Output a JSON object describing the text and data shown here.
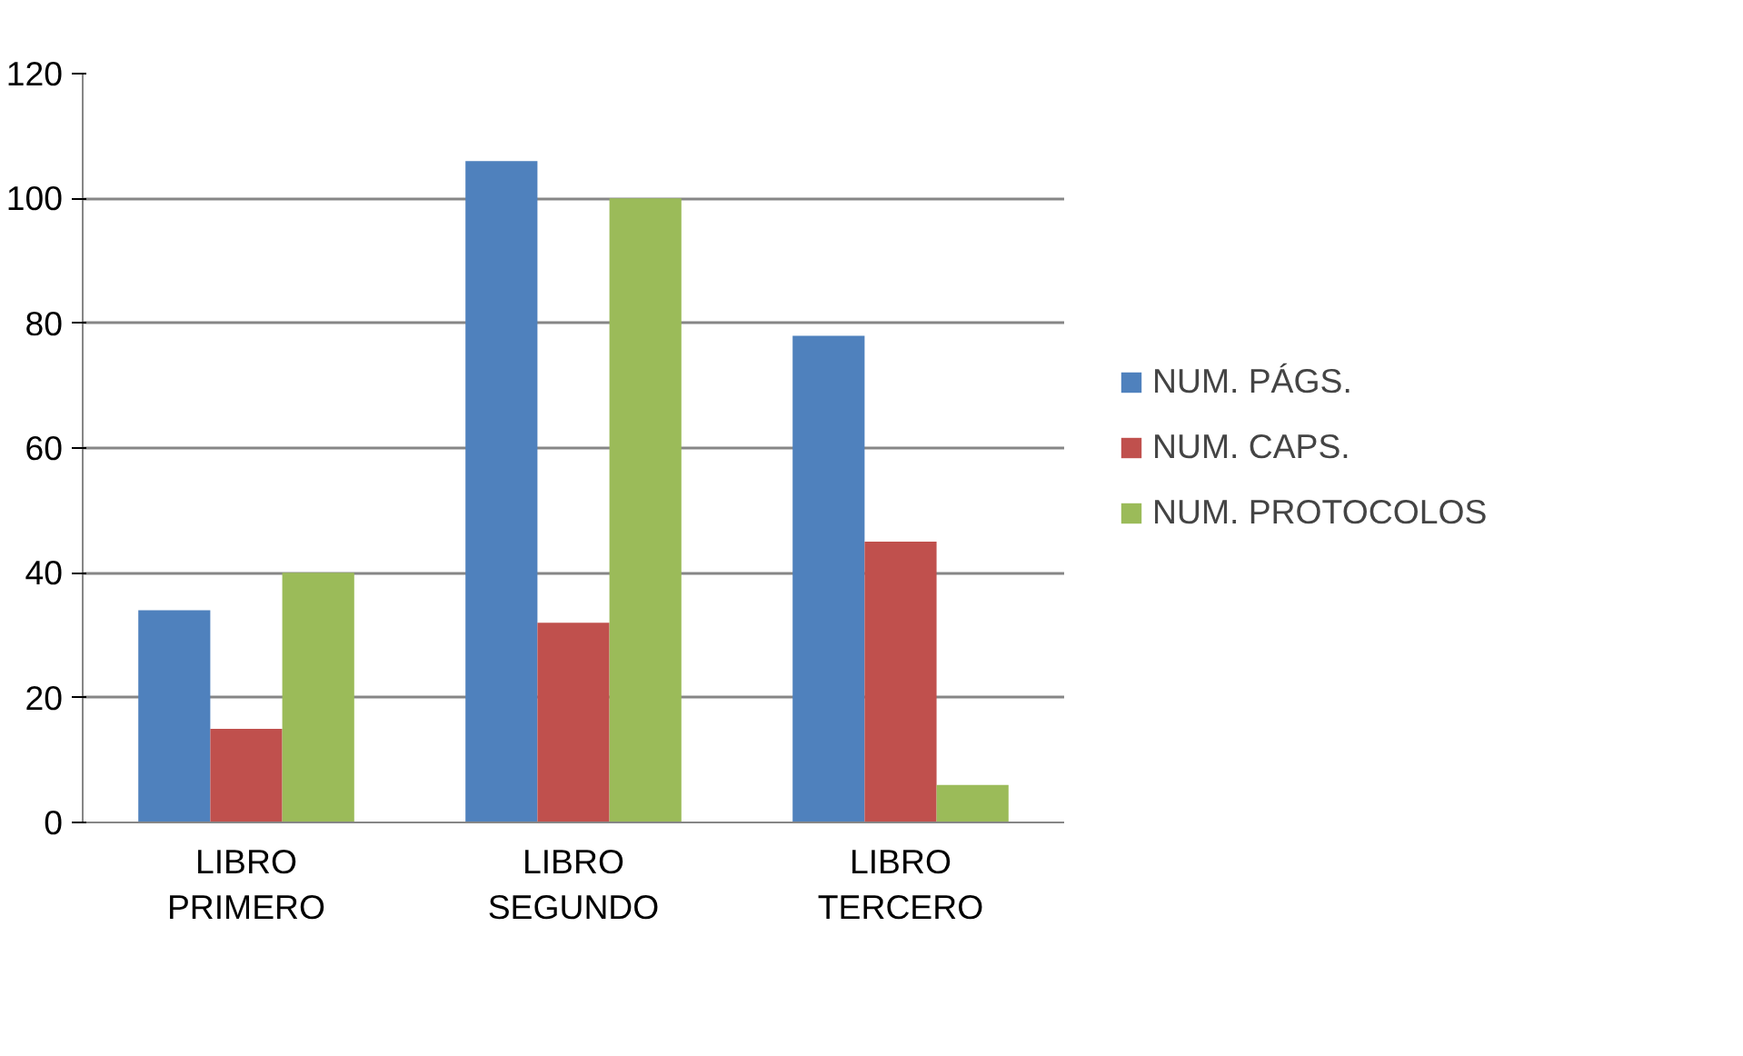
{
  "chart_data": {
    "type": "bar",
    "categories": [
      "LIBRO PRIMERO",
      "LIBRO SEGUNDO",
      "LIBRO TERCERO"
    ],
    "series": [
      {
        "name": "NUM. PÁGS.",
        "color": "#4f81bd",
        "values": [
          34,
          106,
          78
        ]
      },
      {
        "name": "NUM. CAPS.",
        "color": "#c0504d",
        "values": [
          15,
          32,
          45
        ]
      },
      {
        "name": "NUM. PROTOCOLOS",
        "color": "#9bbb59",
        "values": [
          40,
          100,
          6
        ]
      }
    ],
    "ylim": [
      0,
      120
    ],
    "yticks": [
      0,
      20,
      40,
      60,
      80,
      100,
      120
    ],
    "grid": "y",
    "legend": "right"
  }
}
